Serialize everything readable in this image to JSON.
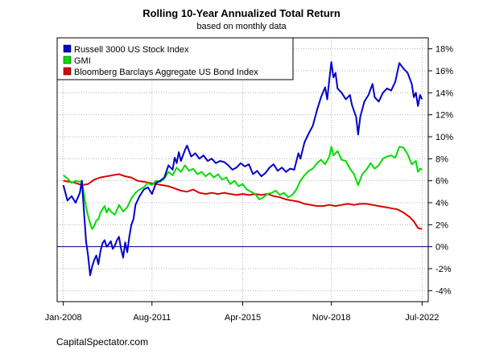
{
  "chart_data": {
    "type": "line",
    "title": "Rolling 10-Year Annualized Total Return",
    "subtitle": "based on monthly data",
    "x_range": [
      "2007-10",
      "2022-10"
    ],
    "ylim": [
      -5,
      19
    ],
    "grid": true,
    "x_ticks": [
      {
        "date": "2008-01",
        "label": "Jan-2008"
      },
      {
        "date": "2011-08",
        "label": "Aug-2011"
      },
      {
        "date": "2015-04",
        "label": "Apr-2015"
      },
      {
        "date": "2018-11",
        "label": "Nov-2018"
      },
      {
        "date": "2022-07",
        "label": "Jul-2022"
      }
    ],
    "y_ticks": [
      {
        "value": -4,
        "label": "-4%"
      },
      {
        "value": -2,
        "label": "-2%"
      },
      {
        "value": 0,
        "label": "0%"
      },
      {
        "value": 2,
        "label": "2%"
      },
      {
        "value": 4,
        "label": "4%"
      },
      {
        "value": 6,
        "label": "6%"
      },
      {
        "value": 8,
        "label": "8%"
      },
      {
        "value": 10,
        "label": "10%"
      },
      {
        "value": 12,
        "label": "12%"
      },
      {
        "value": 14,
        "label": "14%"
      },
      {
        "value": 16,
        "label": "16%"
      },
      {
        "value": 18,
        "label": "18%"
      }
    ],
    "reference_line": {
      "value": 0,
      "color": "#00008B"
    },
    "legend_position": "top-left",
    "series": [
      {
        "name": "Russell 3000 US Stock Index",
        "color": "#0000CC",
        "points": [
          [
            "2008-01",
            5.6
          ],
          [
            "2008-03",
            4.2
          ],
          [
            "2008-05",
            4.6
          ],
          [
            "2008-07",
            4.0
          ],
          [
            "2008-09",
            4.9
          ],
          [
            "2008-10",
            6.0
          ],
          [
            "2008-11",
            3.2
          ],
          [
            "2008-12",
            0.5
          ],
          [
            "2009-01",
            -0.8
          ],
          [
            "2009-02",
            -2.6
          ],
          [
            "2009-03",
            -1.8
          ],
          [
            "2009-04",
            -1.2
          ],
          [
            "2009-05",
            -0.8
          ],
          [
            "2009-06",
            -1.6
          ],
          [
            "2009-07",
            -0.4
          ],
          [
            "2009-08",
            0.3
          ],
          [
            "2009-09",
            0.6
          ],
          [
            "2009-10",
            0.0
          ],
          [
            "2009-11",
            0.2
          ],
          [
            "2009-12",
            0.5
          ],
          [
            "2010-01",
            -0.2
          ],
          [
            "2010-02",
            0.1
          ],
          [
            "2010-03",
            0.6
          ],
          [
            "2010-04",
            0.9
          ],
          [
            "2010-05",
            -0.2
          ],
          [
            "2010-06",
            -1.0
          ],
          [
            "2010-07",
            0.4
          ],
          [
            "2010-08",
            -0.5
          ],
          [
            "2010-09",
            0.9
          ],
          [
            "2010-10",
            2.0
          ],
          [
            "2010-11",
            2.5
          ],
          [
            "2010-12",
            3.8
          ],
          [
            "2011-02",
            4.6
          ],
          [
            "2011-04",
            5.2
          ],
          [
            "2011-06",
            5.4
          ],
          [
            "2011-08",
            4.8
          ],
          [
            "2011-10",
            5.8
          ],
          [
            "2011-12",
            6.0
          ],
          [
            "2012-02",
            6.3
          ],
          [
            "2012-04",
            7.4
          ],
          [
            "2012-06",
            7.0
          ],
          [
            "2012-07",
            8.1
          ],
          [
            "2012-08",
            7.6
          ],
          [
            "2012-09",
            8.6
          ],
          [
            "2012-10",
            7.8
          ],
          [
            "2012-12",
            8.8
          ],
          [
            "2013-01",
            9.2
          ],
          [
            "2013-03",
            8.2
          ],
          [
            "2013-05",
            8.5
          ],
          [
            "2013-07",
            8.0
          ],
          [
            "2013-09",
            8.3
          ],
          [
            "2013-11",
            7.8
          ],
          [
            "2014-01",
            8.0
          ],
          [
            "2014-03",
            7.6
          ],
          [
            "2014-05",
            7.8
          ],
          [
            "2014-07",
            7.7
          ],
          [
            "2014-09",
            7.4
          ],
          [
            "2014-11",
            7.0
          ],
          [
            "2015-01",
            7.2
          ],
          [
            "2015-03",
            7.6
          ],
          [
            "2015-05",
            7.3
          ],
          [
            "2015-07",
            7.5
          ],
          [
            "2015-09",
            6.6
          ],
          [
            "2015-11",
            6.9
          ],
          [
            "2016-01",
            6.4
          ],
          [
            "2016-03",
            6.7
          ],
          [
            "2016-05",
            7.2
          ],
          [
            "2016-07",
            7.5
          ],
          [
            "2016-09",
            6.9
          ],
          [
            "2016-11",
            7.2
          ],
          [
            "2017-01",
            6.8
          ],
          [
            "2017-03",
            7.1
          ],
          [
            "2017-05",
            7.0
          ],
          [
            "2017-07",
            8.5
          ],
          [
            "2017-08",
            8.0
          ],
          [
            "2017-10",
            9.5
          ],
          [
            "2017-12",
            10.3
          ],
          [
            "2018-02",
            11.0
          ],
          [
            "2018-04",
            12.4
          ],
          [
            "2018-06",
            13.6
          ],
          [
            "2018-08",
            14.5
          ],
          [
            "2018-09",
            13.4
          ],
          [
            "2018-10",
            15.2
          ],
          [
            "2018-11",
            16.8
          ],
          [
            "2018-12",
            15.4
          ],
          [
            "2019-01",
            15.8
          ],
          [
            "2019-02",
            14.4
          ],
          [
            "2019-04",
            14.0
          ],
          [
            "2019-06",
            13.4
          ],
          [
            "2019-08",
            13.8
          ],
          [
            "2019-09",
            12.9
          ],
          [
            "2019-11",
            11.8
          ],
          [
            "2019-12",
            10.2
          ],
          [
            "2020-01",
            11.8
          ],
          [
            "2020-03",
            13.2
          ],
          [
            "2020-05",
            13.8
          ],
          [
            "2020-07",
            14.8
          ],
          [
            "2020-08",
            13.6
          ],
          [
            "2020-10",
            13.2
          ],
          [
            "2020-12",
            14.0
          ],
          [
            "2021-02",
            14.4
          ],
          [
            "2021-04",
            14.2
          ],
          [
            "2021-06",
            15.0
          ],
          [
            "2021-08",
            16.7
          ],
          [
            "2021-10",
            16.2
          ],
          [
            "2021-12",
            15.8
          ],
          [
            "2022-02",
            14.8
          ],
          [
            "2022-03",
            13.6
          ],
          [
            "2022-04",
            14.0
          ],
          [
            "2022-05",
            12.8
          ],
          [
            "2022-06",
            13.8
          ],
          [
            "2022-07",
            13.4
          ]
        ]
      },
      {
        "name": "GMI",
        "color": "#00DD00",
        "points": [
          [
            "2008-01",
            6.5
          ],
          [
            "2008-03",
            6.2
          ],
          [
            "2008-05",
            5.8
          ],
          [
            "2008-07",
            6.0
          ],
          [
            "2008-09",
            5.9
          ],
          [
            "2008-10",
            6.0
          ],
          [
            "2008-11",
            4.8
          ],
          [
            "2008-12",
            3.6
          ],
          [
            "2009-01",
            2.8
          ],
          [
            "2009-02",
            2.1
          ],
          [
            "2009-03",
            1.6
          ],
          [
            "2009-04",
            1.9
          ],
          [
            "2009-05",
            2.4
          ],
          [
            "2009-06",
            2.5
          ],
          [
            "2009-07",
            3.1
          ],
          [
            "2009-08",
            3.4
          ],
          [
            "2009-09",
            3.7
          ],
          [
            "2009-10",
            3.1
          ],
          [
            "2009-11",
            3.5
          ],
          [
            "2009-12",
            3.2
          ],
          [
            "2010-02",
            2.9
          ],
          [
            "2010-04",
            3.8
          ],
          [
            "2010-06",
            3.2
          ],
          [
            "2010-08",
            3.6
          ],
          [
            "2010-10",
            4.4
          ],
          [
            "2010-12",
            4.9
          ],
          [
            "2011-02",
            5.2
          ],
          [
            "2011-04",
            5.4
          ],
          [
            "2011-06",
            5.8
          ],
          [
            "2011-08",
            5.6
          ],
          [
            "2011-10",
            6.0
          ],
          [
            "2011-12",
            5.9
          ],
          [
            "2012-02",
            6.2
          ],
          [
            "2012-04",
            6.8
          ],
          [
            "2012-06",
            6.5
          ],
          [
            "2012-08",
            7.2
          ],
          [
            "2012-10",
            6.8
          ],
          [
            "2012-12",
            7.4
          ],
          [
            "2013-02",
            6.9
          ],
          [
            "2013-04",
            7.1
          ],
          [
            "2013-06",
            6.6
          ],
          [
            "2013-08",
            6.8
          ],
          [
            "2013-10",
            6.4
          ],
          [
            "2013-12",
            6.7
          ],
          [
            "2014-02",
            6.3
          ],
          [
            "2014-04",
            6.6
          ],
          [
            "2014-06",
            6.1
          ],
          [
            "2014-08",
            6.3
          ],
          [
            "2014-10",
            5.7
          ],
          [
            "2014-12",
            6.0
          ],
          [
            "2015-02",
            5.5
          ],
          [
            "2015-04",
            5.7
          ],
          [
            "2015-06",
            5.2
          ],
          [
            "2015-08",
            5.0
          ],
          [
            "2015-10",
            4.8
          ],
          [
            "2015-12",
            4.3
          ],
          [
            "2016-02",
            4.5
          ],
          [
            "2016-04",
            4.8
          ],
          [
            "2016-06",
            4.9
          ],
          [
            "2016-08",
            5.1
          ],
          [
            "2016-10",
            4.7
          ],
          [
            "2016-12",
            4.9
          ],
          [
            "2017-02",
            4.5
          ],
          [
            "2017-04",
            4.7
          ],
          [
            "2017-06",
            5.2
          ],
          [
            "2017-08",
            6.0
          ],
          [
            "2017-10",
            6.5
          ],
          [
            "2017-12",
            6.9
          ],
          [
            "2018-02",
            7.1
          ],
          [
            "2018-04",
            7.6
          ],
          [
            "2018-06",
            7.9
          ],
          [
            "2018-08",
            7.5
          ],
          [
            "2018-10",
            8.2
          ],
          [
            "2018-11",
            9.1
          ],
          [
            "2018-12",
            8.3
          ],
          [
            "2019-02",
            8.7
          ],
          [
            "2019-04",
            7.9
          ],
          [
            "2019-06",
            7.8
          ],
          [
            "2019-08",
            7.1
          ],
          [
            "2019-10",
            6.6
          ],
          [
            "2019-12",
            5.6
          ],
          [
            "2020-02",
            6.6
          ],
          [
            "2020-04",
            7.0
          ],
          [
            "2020-06",
            7.6
          ],
          [
            "2020-08",
            7.1
          ],
          [
            "2020-10",
            7.4
          ],
          [
            "2020-12",
            8.0
          ],
          [
            "2021-02",
            8.2
          ],
          [
            "2021-04",
            8.3
          ],
          [
            "2021-06",
            8.1
          ],
          [
            "2021-08",
            9.1
          ],
          [
            "2021-10",
            9.0
          ],
          [
            "2021-12",
            8.4
          ],
          [
            "2022-02",
            7.5
          ],
          [
            "2022-04",
            7.8
          ],
          [
            "2022-05",
            6.8
          ],
          [
            "2022-06",
            7.1
          ],
          [
            "2022-07",
            7.0
          ]
        ]
      },
      {
        "name": "Bloomberg Barclays Aggregate US Bond Index",
        "color": "#DD0000",
        "points": [
          [
            "2008-01",
            6.0
          ],
          [
            "2008-04",
            5.9
          ],
          [
            "2008-07",
            5.8
          ],
          [
            "2008-10",
            5.6
          ],
          [
            "2009-01",
            5.7
          ],
          [
            "2009-04",
            6.1
          ],
          [
            "2009-07",
            6.3
          ],
          [
            "2009-10",
            6.4
          ],
          [
            "2010-01",
            6.5
          ],
          [
            "2010-04",
            6.6
          ],
          [
            "2010-07",
            6.4
          ],
          [
            "2010-10",
            6.3
          ],
          [
            "2011-01",
            6.0
          ],
          [
            "2011-04",
            5.9
          ],
          [
            "2011-07",
            5.8
          ],
          [
            "2011-10",
            5.7
          ],
          [
            "2012-01",
            5.6
          ],
          [
            "2012-04",
            5.5
          ],
          [
            "2012-07",
            5.3
          ],
          [
            "2012-10",
            5.1
          ],
          [
            "2013-01",
            5.0
          ],
          [
            "2013-04",
            5.2
          ],
          [
            "2013-07",
            4.9
          ],
          [
            "2013-10",
            4.8
          ],
          [
            "2014-01",
            4.9
          ],
          [
            "2014-04",
            4.8
          ],
          [
            "2014-07",
            4.9
          ],
          [
            "2014-10",
            4.8
          ],
          [
            "2015-01",
            4.7
          ],
          [
            "2015-04",
            4.8
          ],
          [
            "2015-07",
            4.7
          ],
          [
            "2015-10",
            4.8
          ],
          [
            "2016-01",
            4.7
          ],
          [
            "2016-04",
            4.8
          ],
          [
            "2016-07",
            4.6
          ],
          [
            "2016-10",
            4.5
          ],
          [
            "2017-01",
            4.3
          ],
          [
            "2017-04",
            4.2
          ],
          [
            "2017-07",
            4.1
          ],
          [
            "2017-10",
            3.9
          ],
          [
            "2018-01",
            3.8
          ],
          [
            "2018-04",
            3.7
          ],
          [
            "2018-07",
            3.7
          ],
          [
            "2018-10",
            3.8
          ],
          [
            "2019-01",
            3.7
          ],
          [
            "2019-04",
            3.8
          ],
          [
            "2019-07",
            3.9
          ],
          [
            "2019-10",
            3.8
          ],
          [
            "2020-01",
            3.9
          ],
          [
            "2020-04",
            3.9
          ],
          [
            "2020-07",
            3.8
          ],
          [
            "2020-10",
            3.7
          ],
          [
            "2021-01",
            3.6
          ],
          [
            "2021-04",
            3.5
          ],
          [
            "2021-07",
            3.4
          ],
          [
            "2021-10",
            3.1
          ],
          [
            "2022-01",
            2.7
          ],
          [
            "2022-03",
            2.3
          ],
          [
            "2022-05",
            1.7
          ],
          [
            "2022-07",
            1.6
          ]
        ]
      }
    ]
  },
  "footer": {
    "credit": "CapitalSpectator.com"
  }
}
